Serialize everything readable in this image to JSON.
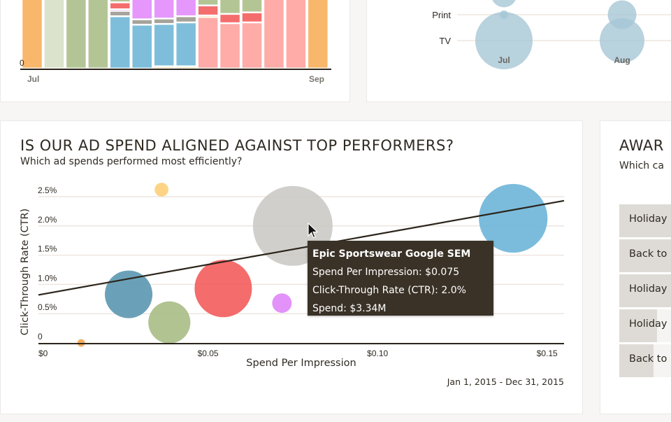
{
  "top_left_chart": {
    "type": "bar",
    "stacked": true,
    "y_tick_zero": "0",
    "x_tick_labels": [
      "Jul",
      "Sep"
    ],
    "colors": {
      "orange": "#f8b76b",
      "pale_green": "#dbe3cd",
      "green": "#b4c595",
      "red": "#f46d6d",
      "pink_light": "#ffaba7",
      "purple": "#e597fb",
      "gray": "#a6a39b",
      "blue": "#7ebedb",
      "yellow": "#fcd58b"
    },
    "bars": [
      {
        "segments": [
          {
            "color": "orange",
            "value": 100
          }
        ]
      },
      {
        "segments": [
          {
            "color": "pale_green",
            "value": 100
          }
        ]
      },
      {
        "segments": [
          {
            "color": "green",
            "value": 100
          }
        ]
      },
      {
        "segments": [
          {
            "color": "green",
            "value": 100
          }
        ]
      },
      {
        "segments": [
          {
            "color": "blue",
            "value": 68
          },
          {
            "color": "gray",
            "value": 7
          },
          {
            "color": "purple",
            "value": 2
          },
          {
            "color": "red",
            "value": 9
          },
          {
            "color": "green",
            "value": 7
          }
        ]
      },
      {
        "segments": [
          {
            "color": "blue",
            "value": 57
          },
          {
            "color": "gray",
            "value": 7
          },
          {
            "color": "purple",
            "value": 33
          }
        ]
      },
      {
        "segments": [
          {
            "color": "yellow",
            "value": 3
          },
          {
            "color": "blue",
            "value": 55
          },
          {
            "color": "gray",
            "value": 7
          },
          {
            "color": "purple",
            "value": 32
          }
        ]
      },
      {
        "segments": [
          {
            "color": "yellow",
            "value": 3
          },
          {
            "color": "blue",
            "value": 57
          },
          {
            "color": "gray",
            "value": 8
          },
          {
            "color": "purple",
            "value": 28
          }
        ]
      },
      {
        "segments": [
          {
            "color": "pink_light",
            "value": 67
          },
          {
            "color": "yellow",
            "value": 2
          },
          {
            "color": "red",
            "value": 13
          },
          {
            "color": "green",
            "value": 12
          }
        ]
      },
      {
        "segments": [
          {
            "color": "pink_light",
            "value": 59
          },
          {
            "color": "red",
            "value": 12
          },
          {
            "color": "green",
            "value": 26
          }
        ]
      },
      {
        "segments": [
          {
            "color": "pink_light",
            "value": 60
          },
          {
            "color": "red",
            "value": 13
          },
          {
            "color": "green",
            "value": 22
          }
        ]
      },
      {
        "segments": [
          {
            "color": "pink_light",
            "value": 100
          }
        ]
      },
      {
        "segments": [
          {
            "color": "pink_light",
            "value": 100
          }
        ]
      },
      {
        "segments": [
          {
            "color": "orange",
            "value": 100
          }
        ]
      }
    ]
  },
  "top_right_chart": {
    "type": "scatter",
    "y_categories": [
      "Print",
      "TV"
    ],
    "x_tick_labels": [
      "Jul",
      "Aug"
    ],
    "bubble_color": "#a6c7d6",
    "bubbles": [
      {
        "month": "Jul",
        "category": "above",
        "size": 0.45
      },
      {
        "month": "Jul",
        "category": "Print",
        "size": 0.15
      },
      {
        "month": "Jul",
        "category": "TV",
        "size": 1.0
      },
      {
        "month": "Aug",
        "category": "Print",
        "size": 0.5
      },
      {
        "month": "Aug",
        "category": "TV",
        "size": 0.78
      }
    ]
  },
  "main": {
    "title": "IS OUR AD SPEND ALIGNED AGAINST TOP PERFORMERS?",
    "subtitle": "Which ad spends performed most efficiently?",
    "date_range": "Jan 1, 2015 - Dec 31, 2015",
    "tooltip": {
      "title": "Epic Sportswear Google SEM",
      "line1": "Spend Per Impression: $0.075",
      "line2": "Click-Through Rate (CTR): 2.0%",
      "line3": "Spend: $3.34M"
    }
  },
  "chart_data": {
    "type": "scatter",
    "title": "IS OUR AD SPEND ALIGNED AGAINST TOP PERFORMERS?",
    "subtitle": "Which ad spends performed most efficiently?",
    "xlabel": "Spend Per Impression",
    "ylabel": "Click-Through Rate (CTR)",
    "xlim": [
      0,
      0.155
    ],
    "ylim": [
      0,
      2.7
    ],
    "x_ticks": [
      0,
      0.05,
      0.1,
      0.15
    ],
    "x_tick_labels": [
      "$0",
      "$0.05",
      "$0.10",
      "$0.15"
    ],
    "y_ticks": [
      0,
      0.5,
      1.0,
      1.5,
      2.0,
      2.5
    ],
    "y_tick_labels": [
      "0",
      "0.5%",
      "1.0%",
      "1.5%",
      "2.0%",
      "2.5%"
    ],
    "grid": true,
    "size_encoding": "Spend ($M)",
    "points": [
      {
        "x": 0.0363,
        "y": 2.62,
        "spend": 0.1,
        "color": "#fdd486",
        "opacity": 1.0
      },
      {
        "x": 0.075,
        "y": 2.0,
        "spend": 3.34,
        "color": "#c9c7c2",
        "opacity": 0.85,
        "name": "Epic Sportswear Google SEM",
        "highlighted": true
      },
      {
        "x": 0.14,
        "y": 2.13,
        "spend": 2.48,
        "color": "#6db5d8",
        "opacity": 0.9
      },
      {
        "x": 0.0266,
        "y": 0.83,
        "spend": 1.19,
        "color": "#5b97b0",
        "opacity": 0.9
      },
      {
        "x": 0.0386,
        "y": 0.35,
        "spend": 0.93,
        "color": "#a7bc85",
        "opacity": 0.9
      },
      {
        "x": 0.0545,
        "y": 0.93,
        "spend": 1.73,
        "color": "#f35c5c",
        "opacity": 0.9
      },
      {
        "x": 0.0718,
        "y": 0.68,
        "spend": 0.2,
        "color": "#e08cf9",
        "opacity": 0.95
      },
      {
        "x": 0.0126,
        "y": 0.0,
        "spend": 0.03,
        "color": "#f6ad5e",
        "opacity": 1.0
      }
    ],
    "trend_line": {
      "x": [
        0,
        0.155
      ],
      "y": [
        0.82,
        2.43
      ],
      "color": "#2b241b"
    }
  },
  "right_panel": {
    "title": "AWAR",
    "subtitle": "Which ca",
    "rows": [
      {
        "label": "Holiday",
        "fill": 1.0
      },
      {
        "label": "Back to",
        "fill": 1.0
      },
      {
        "label": "Holiday",
        "fill": 1.0
      },
      {
        "label": "Holiday",
        "fill": 0.45
      },
      {
        "label": "Back to",
        "fill": 0.41
      }
    ]
  }
}
